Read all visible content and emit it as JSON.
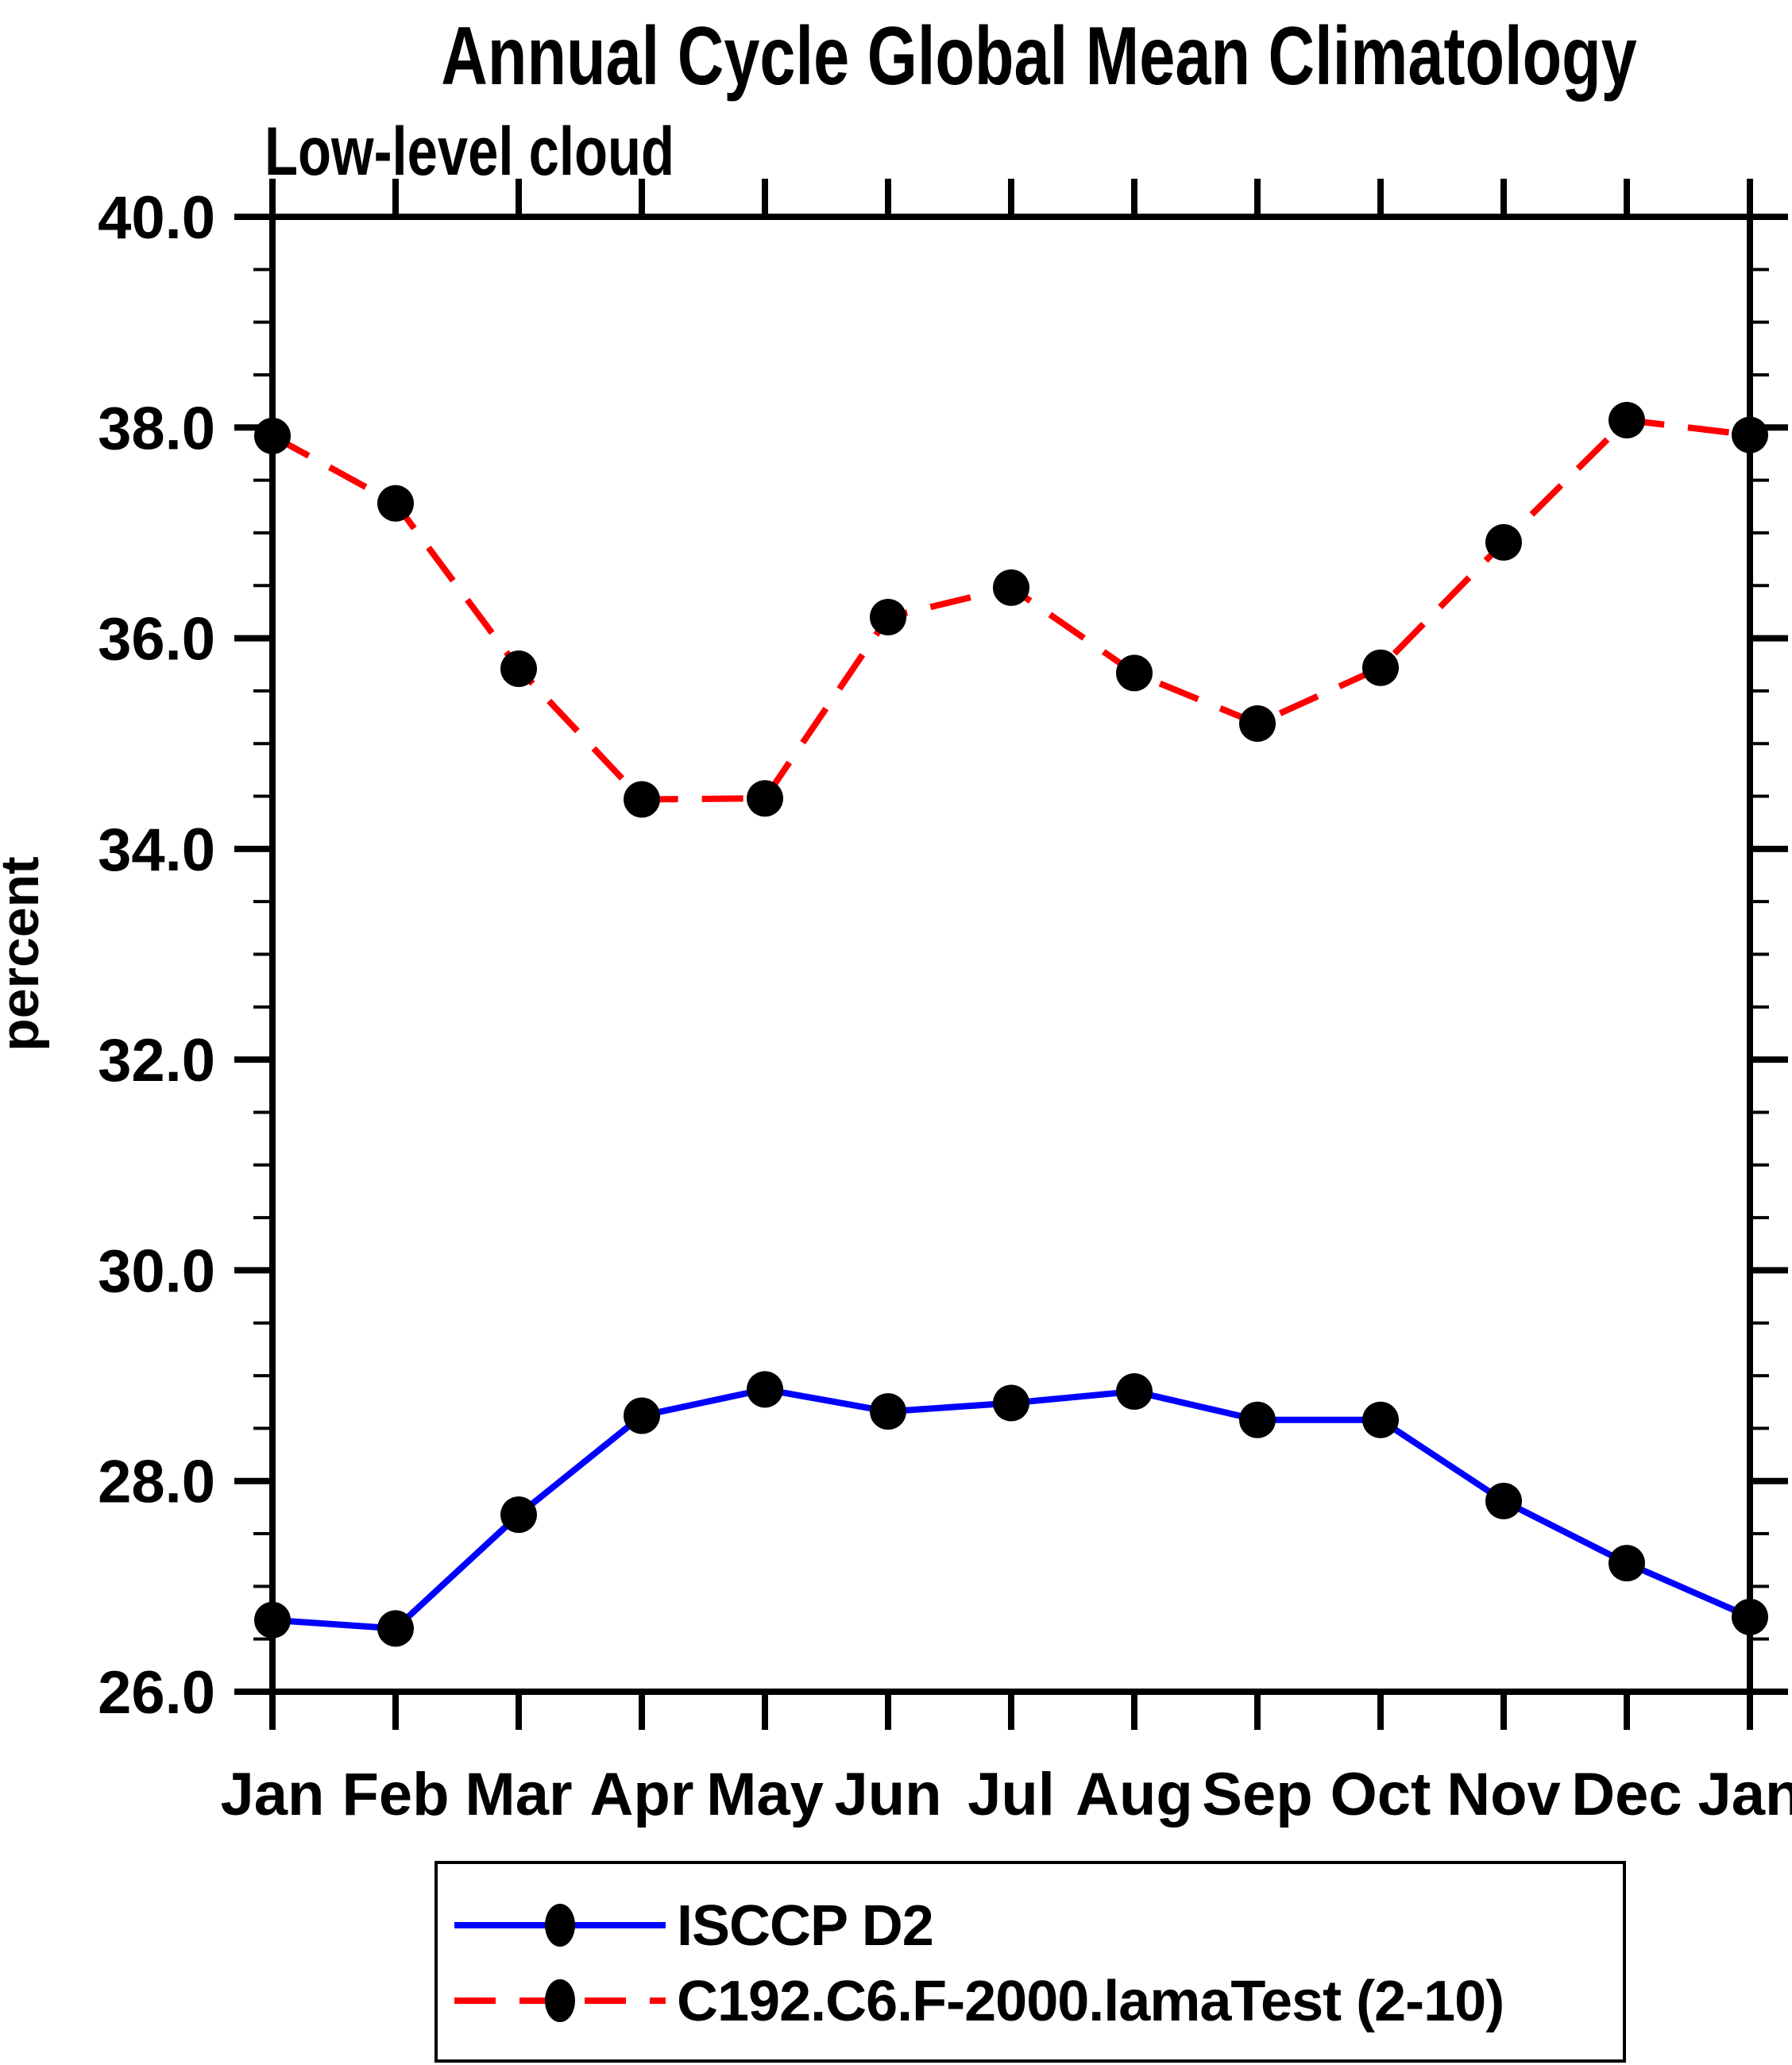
{
  "page": {
    "title": "Annual Cycle Global Mean Climatology",
    "subtitle": "Low-level cloud"
  },
  "chart_data": {
    "type": "line",
    "title": "Annual Cycle Global Mean Climatology",
    "subtitle": "Low-level cloud",
    "xlabel": "",
    "ylabel": "percent",
    "categories": [
      "Jan",
      "Feb",
      "Mar",
      "Apr",
      "May",
      "Jun",
      "Jul",
      "Aug",
      "Sep",
      "Oct",
      "Nov",
      "Dec",
      "Jan"
    ],
    "ylim": [
      26.0,
      40.0
    ],
    "ytick_major_step": 2.0,
    "ytick_minor_step": 0.5,
    "ytick_labels": [
      "26.0",
      "28.0",
      "30.0",
      "32.0",
      "34.0",
      "36.0",
      "38.0",
      "40.0"
    ],
    "grid": false,
    "legend_position": "bottom",
    "axis_color": "#000000",
    "marker_color": "#000000",
    "series": [
      {
        "name": "ISCCP D2",
        "color": "#0000ff",
        "style": "solid",
        "marker": "circle",
        "values": [
          26.68,
          26.6,
          27.68,
          28.62,
          28.87,
          28.66,
          28.74,
          28.85,
          28.58,
          28.58,
          27.81,
          27.22,
          26.71
        ]
      },
      {
        "name": "C192.C6.F-2000.lamaTest (2-10)",
        "color": "#ff0000",
        "style": "dashed",
        "marker": "circle",
        "values": [
          37.92,
          37.28,
          35.71,
          34.47,
          34.48,
          36.2,
          36.48,
          35.67,
          35.19,
          35.72,
          36.91,
          38.07,
          37.93
        ]
      }
    ]
  }
}
